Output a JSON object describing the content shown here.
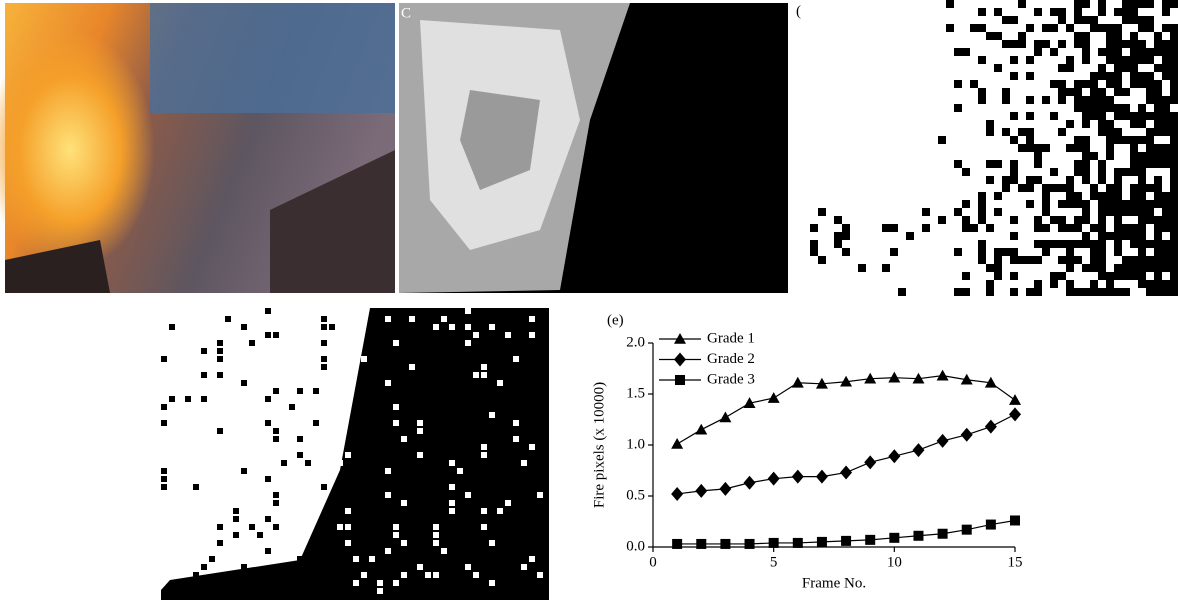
{
  "panels": [
    {
      "label": "C"
    },
    {
      "label": "("
    }
  ],
  "chart_data": {
    "type": "line",
    "panel_label": "(e)",
    "xlabel": "Frame No.",
    "ylabel": "Fire pixels (x 10000)",
    "x": [
      1,
      2,
      3,
      4,
      5,
      6,
      7,
      8,
      9,
      10,
      11,
      12,
      13,
      14,
      15
    ],
    "series": [
      {
        "name": "Grade 1",
        "color": "#000000",
        "marker": "triangle",
        "values": [
          1.01,
          1.15,
          1.27,
          1.41,
          1.46,
          1.61,
          1.6,
          1.62,
          1.65,
          1.66,
          1.65,
          1.68,
          1.64,
          1.61,
          1.44
        ]
      },
      {
        "name": "Grade 2",
        "color": "#000000",
        "marker": "diamond",
        "values": [
          0.52,
          0.55,
          0.57,
          0.63,
          0.67,
          0.69,
          0.69,
          0.73,
          0.83,
          0.89,
          0.95,
          1.04,
          1.1,
          1.18,
          1.3
        ]
      },
      {
        "name": "Grade 3",
        "color": "#000000",
        "marker": "square",
        "values": [
          0.03,
          0.03,
          0.03,
          0.03,
          0.04,
          0.04,
          0.05,
          0.06,
          0.07,
          0.09,
          0.11,
          0.13,
          0.17,
          0.22,
          0.26
        ]
      }
    ],
    "xlim": [
      0,
      15
    ],
    "xticks": [
      0,
      5,
      10,
      15
    ],
    "ylim": [
      0,
      2
    ],
    "yticks": [
      {
        "value": 0,
        "label": "0.0"
      },
      {
        "value": 0.5,
        "label": "0.5"
      },
      {
        "value": 1,
        "label": "1.0"
      },
      {
        "value": 1.5,
        "label": "1.5"
      },
      {
        "value": 2,
        "label": "2.0"
      }
    ],
    "legend": "upper-left",
    "grid": false
  }
}
